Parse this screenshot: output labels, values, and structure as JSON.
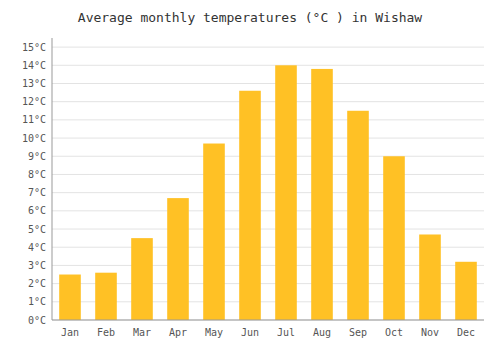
{
  "chart_data": {
    "type": "bar",
    "title": "Average monthly temperatures (°C ) in Wishaw",
    "categories": [
      "Jan",
      "Feb",
      "Mar",
      "Apr",
      "May",
      "Jun",
      "Jul",
      "Aug",
      "Sep",
      "Oct",
      "Nov",
      "Dec"
    ],
    "values": [
      2.5,
      2.6,
      4.5,
      6.7,
      9.7,
      12.6,
      14.0,
      13.8,
      11.5,
      9.0,
      4.7,
      3.2
    ],
    "color": "#FFC125",
    "ylim": [
      0,
      15.5
    ],
    "yticks": [
      {
        "value": 0,
        "label": "0°C"
      },
      {
        "value": 1,
        "label": "1°C"
      },
      {
        "value": 2,
        "label": "2°C"
      },
      {
        "value": 3,
        "label": "3°C"
      },
      {
        "value": 4,
        "label": "4°C"
      },
      {
        "value": 5,
        "label": "5°C"
      },
      {
        "value": 6,
        "label": "6°C"
      },
      {
        "value": 7,
        "label": "7°C"
      },
      {
        "value": 8,
        "label": "8°C"
      },
      {
        "value": 9,
        "label": "9°C"
      },
      {
        "value": 10,
        "label": "10°C"
      },
      {
        "value": 11,
        "label": "11°C"
      },
      {
        "value": 12,
        "label": "12°C"
      },
      {
        "value": 13,
        "label": "13°C"
      },
      {
        "value": 14,
        "label": "14°C"
      },
      {
        "value": 15,
        "label": "15°C"
      }
    ],
    "grid": true
  }
}
